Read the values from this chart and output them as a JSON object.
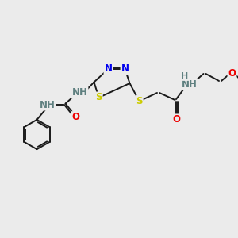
{
  "bg_color": "#ebebeb",
  "bond_color": "#1a1a1a",
  "N_color": "#0000ee",
  "S_color": "#cccc00",
  "O_color": "#ee0000",
  "H_color": "#5f8080",
  "font_size": 8.5,
  "bond_width": 1.4,
  "fig_size": [
    3.0,
    3.0
  ],
  "dpi": 100,
  "xlim": [
    0,
    10
  ],
  "ylim": [
    0,
    10
  ]
}
